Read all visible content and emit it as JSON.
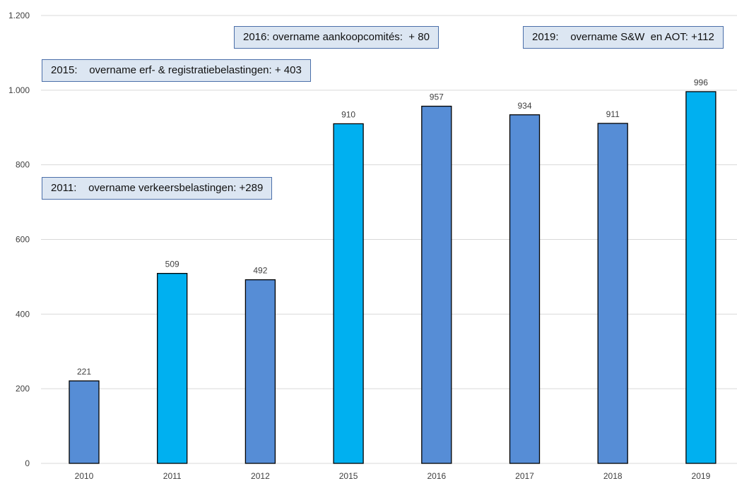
{
  "chart_data": {
    "type": "bar",
    "categories": [
      "2010",
      "2011",
      "2012",
      "2015",
      "2016",
      "2017",
      "2018",
      "2019"
    ],
    "values": [
      221,
      509,
      492,
      910,
      957,
      934,
      911,
      996
    ],
    "value_labels": [
      "221",
      "509",
      "492",
      "910",
      "957",
      "934",
      "911",
      "996"
    ],
    "bar_colors": [
      "#568dd6",
      "#00b0f0",
      "#568dd6",
      "#00b0f0",
      "#568dd6",
      "#568dd6",
      "#568dd6",
      "#00b0f0"
    ],
    "ylim": [
      0,
      1200
    ],
    "yticks": [
      0,
      200,
      400,
      600,
      800,
      1000,
      1200
    ],
    "ytick_labels": [
      "0",
      "200",
      "400",
      "600",
      "800",
      "1.000",
      "1.200"
    ],
    "grid": true,
    "title": "",
    "xlabel": "",
    "ylabel": "",
    "annotations": [
      {
        "text": "2016: overname aankoopcomités:  + 80"
      },
      {
        "text": "2019:    overname S&W  en AOT: +112"
      },
      {
        "text": "2015:    overname erf- & registratiebelastingen: + 403"
      },
      {
        "text": "2011:    overname verkeersbelastingen: +289"
      }
    ]
  },
  "colors": {
    "gridline": "#d9d9d9",
    "bar_outline": "#000000",
    "annotation_fill": "#dce6f2",
    "annotation_border": "#4a6ea9"
  }
}
